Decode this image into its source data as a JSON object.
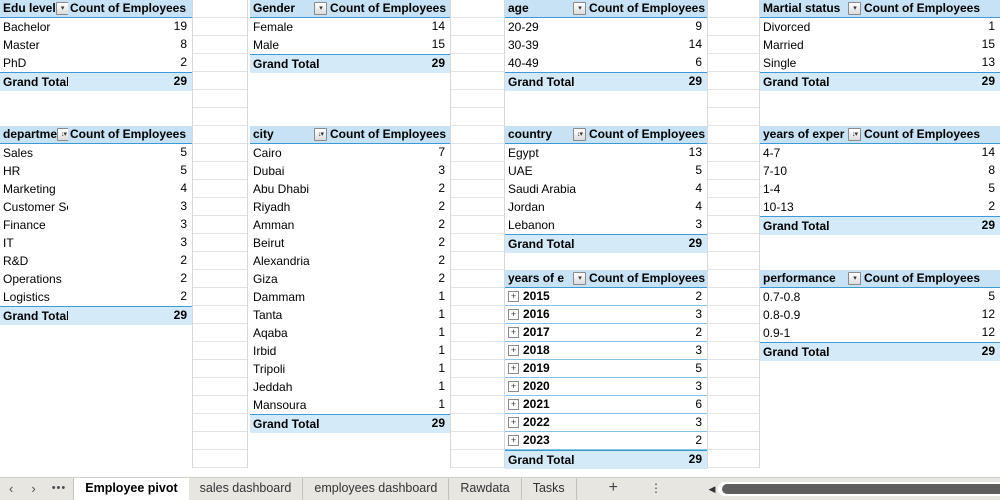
{
  "colors": {
    "header_fill": "#C6E2F4",
    "total_fill": "#D4EAF8",
    "table_border": "#3D9AD7",
    "band_border": "#86C2E8",
    "gridline": "#E3E3E3",
    "tabbar_bg": "#E8E6E1",
    "scroll_thumb": "#5E5E5E"
  },
  "tables": [
    {
      "name": "edu-level",
      "field": "Edu level",
      "filter": "dropdown",
      "value_header": "Count of Employees",
      "rows": [
        {
          "label": "Bachelor",
          "value": 19
        },
        {
          "label": "Master",
          "value": 8
        },
        {
          "label": "PhD",
          "value": 2
        }
      ],
      "total_label": "Grand Total",
      "total_value": 29
    },
    {
      "name": "gender",
      "field": "Gender",
      "filter": "dropdown",
      "value_header": "Count of Employees",
      "rows": [
        {
          "label": "Female",
          "value": 14
        },
        {
          "label": "Male",
          "value": 15
        }
      ],
      "total_label": "Grand Total",
      "total_value": 29
    },
    {
      "name": "age",
      "field": "age",
      "filter": "dropdown",
      "value_header": "Count of Employees",
      "rows": [
        {
          "label": "20-29",
          "value": 9
        },
        {
          "label": "30-39",
          "value": 14
        },
        {
          "label": "40-49",
          "value": 6
        }
      ],
      "total_label": "Grand Total",
      "total_value": 29
    },
    {
      "name": "marital-status",
      "field": "Martial status",
      "filter": "dropdown",
      "value_header": "Count of Employees",
      "rows": [
        {
          "label": "Divorced",
          "value": 1
        },
        {
          "label": "Married",
          "value": 15
        },
        {
          "label": "Single",
          "value": 13
        }
      ],
      "total_label": "Grand Total",
      "total_value": 29
    },
    {
      "name": "department",
      "field": "departme",
      "filter": "sorted",
      "value_header": "Count of Employees",
      "rows": [
        {
          "label": "Sales",
          "value": 5
        },
        {
          "label": "HR",
          "value": 5
        },
        {
          "label": "Marketing",
          "value": 4
        },
        {
          "label": "Customer Se",
          "value": 3
        },
        {
          "label": "Finance",
          "value": 3
        },
        {
          "label": "IT",
          "value": 3
        },
        {
          "label": "R&D",
          "value": 2
        },
        {
          "label": "Operations",
          "value": 2
        },
        {
          "label": "Logistics",
          "value": 2
        }
      ],
      "total_label": "Grand Total",
      "total_value": 29
    },
    {
      "name": "city",
      "field": "city",
      "filter": "sorted",
      "value_header": "Count of Employees",
      "rows": [
        {
          "label": "Cairo",
          "value": 7
        },
        {
          "label": "Dubai",
          "value": 3
        },
        {
          "label": "Abu Dhabi",
          "value": 2
        },
        {
          "label": "Riyadh",
          "value": 2
        },
        {
          "label": "Amman",
          "value": 2
        },
        {
          "label": "Beirut",
          "value": 2
        },
        {
          "label": "Alexandria",
          "value": 2
        },
        {
          "label": "Giza",
          "value": 2
        },
        {
          "label": "Dammam",
          "value": 1
        },
        {
          "label": "Tanta",
          "value": 1
        },
        {
          "label": "Aqaba",
          "value": 1
        },
        {
          "label": "Irbid",
          "value": 1
        },
        {
          "label": "Tripoli",
          "value": 1
        },
        {
          "label": "Jeddah",
          "value": 1
        },
        {
          "label": "Mansoura",
          "value": 1
        }
      ],
      "total_label": "Grand Total",
      "total_value": 29
    },
    {
      "name": "country",
      "field": "country",
      "filter": "sorted",
      "value_header": "Count of Employees",
      "rows": [
        {
          "label": "Egypt",
          "value": 13
        },
        {
          "label": "UAE",
          "value": 5
        },
        {
          "label": "Saudi Arabia",
          "value": 4
        },
        {
          "label": "Jordan",
          "value": 4
        },
        {
          "label": "Lebanon",
          "value": 3
        }
      ],
      "total_label": "Grand Total",
      "total_value": 29
    },
    {
      "name": "years-of-experience",
      "field": "years of exper",
      "filter": "sorted",
      "value_header": "Count of Employees",
      "rows": [
        {
          "label": "4-7",
          "value": 14
        },
        {
          "label": "7-10",
          "value": 8
        },
        {
          "label": "1-4",
          "value": 5
        },
        {
          "label": "10-13",
          "value": 2
        }
      ],
      "total_label": "Grand Total",
      "total_value": 29
    },
    {
      "name": "hire-year",
      "field": "years of e",
      "filter": "dropdown",
      "value_header": "Count of Employees",
      "banded": true,
      "rows": [
        {
          "label": "2015",
          "value": 2,
          "expand": true
        },
        {
          "label": "2016",
          "value": 3,
          "expand": true
        },
        {
          "label": "2017",
          "value": 2,
          "expand": true
        },
        {
          "label": "2018",
          "value": 3,
          "expand": true
        },
        {
          "label": "2019",
          "value": 5,
          "expand": true
        },
        {
          "label": "2020",
          "value": 3,
          "expand": true
        },
        {
          "label": "2021",
          "value": 6,
          "expand": true
        },
        {
          "label": "2022",
          "value": 3,
          "expand": true
        },
        {
          "label": "2023",
          "value": 2,
          "expand": true
        }
      ],
      "total_label": "Grand Total",
      "total_value": 29
    },
    {
      "name": "performance",
      "field": "performance",
      "filter": "dropdown",
      "value_header": "Count of Employees",
      "rows": [
        {
          "label": "0.7-0.8",
          "value": 5
        },
        {
          "label": "0.8-0.9",
          "value": 12
        },
        {
          "label": "0.9-1",
          "value": 12
        }
      ],
      "total_label": "Grand Total",
      "total_value": 29
    }
  ],
  "icons": {
    "dropdown": "▾",
    "sorted": "↓▾",
    "expand": "+"
  },
  "tabbar": {
    "nav_left": "‹",
    "nav_right": "›",
    "more": "•••",
    "tabs": [
      {
        "label": "Employee pivot",
        "active": true
      },
      {
        "label": "sales dashboard",
        "active": false
      },
      {
        "label": "employees dashboard",
        "active": false
      },
      {
        "label": "Rawdata",
        "active": false
      },
      {
        "label": "Tasks",
        "active": false
      }
    ],
    "add_label": "+",
    "menu": "⋮",
    "scroll_left": "◀"
  }
}
